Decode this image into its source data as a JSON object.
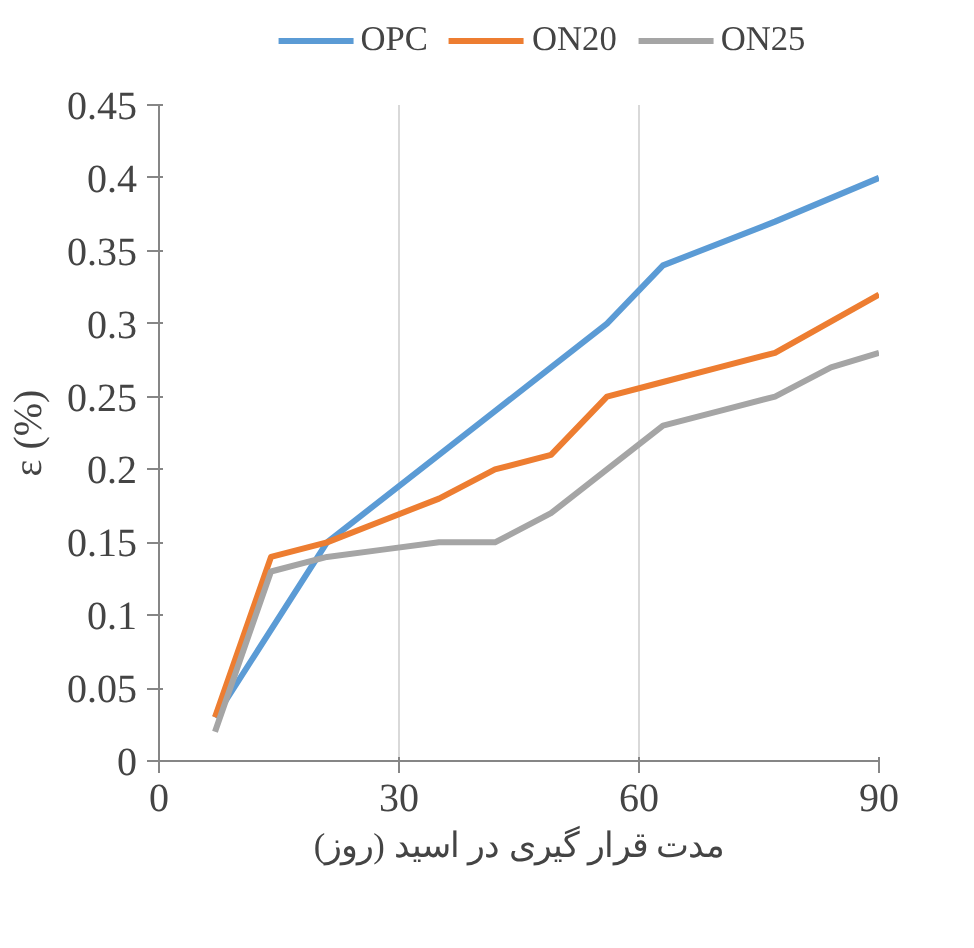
{
  "chart_data": {
    "type": "line",
    "xlabel": "مدت قرار گیری در اسید (روز)",
    "ylabel": "ε (%)",
    "xlim": [
      0,
      90
    ],
    "xticks": [
      0,
      30,
      60,
      90
    ],
    "ylim": [
      0,
      0.45
    ],
    "yticks": [
      0,
      0.05,
      0.1,
      0.15,
      0.2,
      0.25,
      0.3,
      0.35,
      0.4,
      0.45
    ],
    "grid": "x",
    "legend": "top",
    "marker": "none",
    "line_style": "solid",
    "series": [
      {
        "name": "OPC",
        "color": "#5b9bd5",
        "x": [
          7,
          21,
          35,
          42,
          49,
          56,
          63,
          77,
          90
        ],
        "values": [
          0.03,
          0.15,
          0.21,
          0.24,
          0.27,
          0.3,
          0.34,
          0.37,
          0.4
        ]
      },
      {
        "name": "ON20",
        "color": "#ed7d31",
        "x": [
          7,
          14,
          21,
          28,
          35,
          42,
          49,
          56,
          63,
          70,
          77,
          90
        ],
        "values": [
          0.03,
          0.14,
          0.15,
          0.165,
          0.18,
          0.2,
          0.21,
          0.25,
          0.26,
          0.27,
          0.28,
          0.32
        ]
      },
      {
        "name": "ON25",
        "color": "#a5a5a5",
        "x": [
          7,
          14,
          21,
          28,
          35,
          42,
          49,
          56,
          63,
          70,
          77,
          84,
          90
        ],
        "values": [
          0.02,
          0.13,
          0.14,
          0.145,
          0.15,
          0.15,
          0.17,
          0.2,
          0.23,
          0.24,
          0.25,
          0.27,
          0.28
        ]
      }
    ]
  }
}
